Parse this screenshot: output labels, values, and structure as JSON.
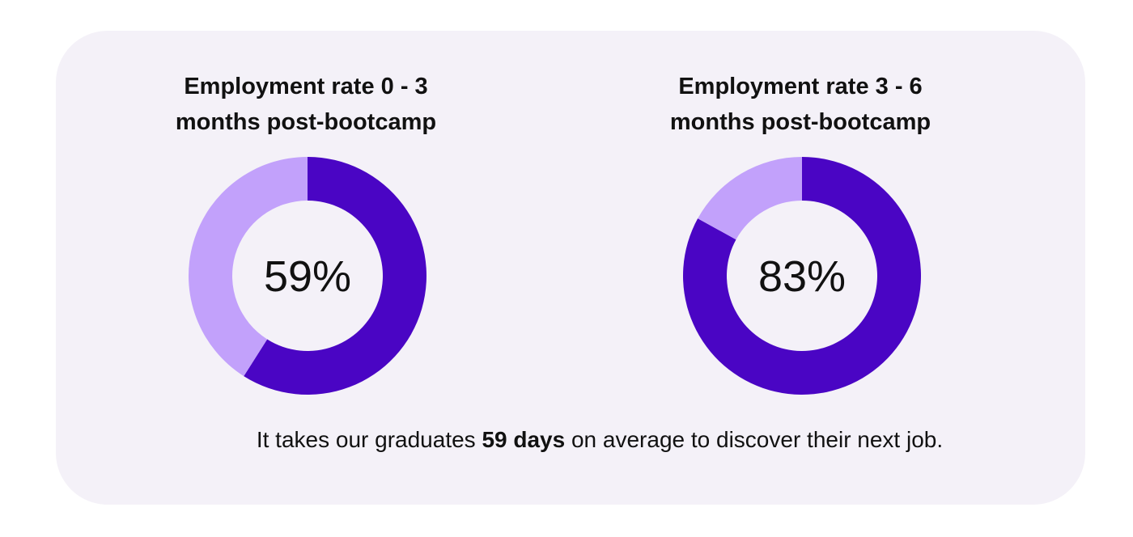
{
  "colors": {
    "filled": "#4a05c4",
    "remainder": "#c2a1fb",
    "card": "#f4f1f8"
  },
  "chart_data": [
    {
      "type": "pie",
      "title": "Employment rate 0 - 3 months post-bootcamp",
      "title_lines": [
        "Employment rate 0 - 3",
        "months post-bootcamp"
      ],
      "value": 59,
      "label": "59%",
      "slices": [
        {
          "value": 59,
          "color": "#4a05c4"
        },
        {
          "value": 41,
          "color": "#c2a1fb"
        }
      ]
    },
    {
      "type": "pie",
      "title": "Employment rate 3 - 6 months post-bootcamp",
      "title_lines": [
        "Employment rate 3 - 6",
        "months post-bootcamp"
      ],
      "value": 83,
      "label": "83%",
      "slices": [
        {
          "value": 83,
          "color": "#4a05c4"
        },
        {
          "value": 17,
          "color": "#c2a1fb"
        }
      ]
    }
  ],
  "footer": {
    "before": "It takes our graduates ",
    "highlight": "59 days",
    "after": " on average to discover their next job."
  }
}
